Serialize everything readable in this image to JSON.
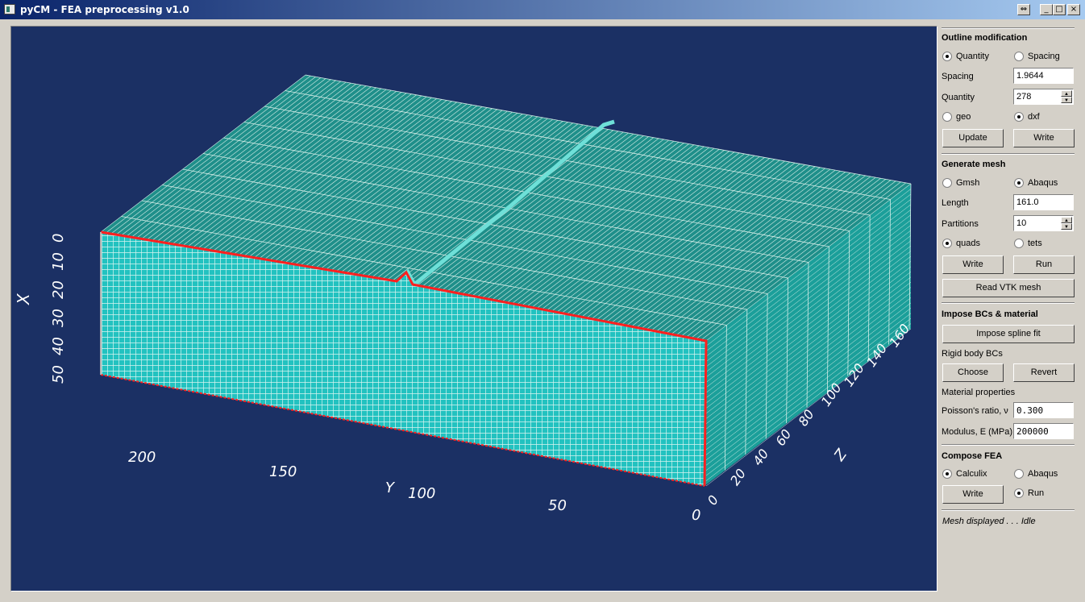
{
  "window": {
    "title": "pyCM - FEA preprocessing v1.0"
  },
  "titlebar": {
    "restore_glyph": "⇔",
    "minimize_glyph": "_",
    "maximize_glyph": "□",
    "close_glyph": "×"
  },
  "viewport": {
    "x_axis": {
      "label": "X",
      "ticks": [
        "0",
        "10",
        "20",
        "30",
        "40",
        "50"
      ]
    },
    "y_axis": {
      "label": "Y",
      "ticks": [
        "200",
        "150",
        "100",
        "50",
        "0"
      ]
    },
    "z_axis": {
      "label": "Z",
      "ticks": [
        "0",
        "20",
        "40",
        "60",
        "80",
        "100",
        "120",
        "140",
        "160"
      ]
    },
    "colors": {
      "background": "#1b3064",
      "mesh_face": "#1fbfbf",
      "mesh_top": "#1a8f8a",
      "outline": "#ff2020",
      "grid_line": "#e0f2ee"
    }
  },
  "outline": {
    "header": "Outline modification",
    "quantity_label": "Quantity",
    "spacing_radio_label": "Spacing",
    "spacing_field_label": "Spacing",
    "spacing_value": "1.9644",
    "quantity_field_label": "Quantity",
    "quantity_value": "278",
    "geo_label": "geo",
    "dxf_label": "dxf",
    "update_button": "Update",
    "write_button": "Write",
    "selected_mode": "Quantity",
    "selected_format": "dxf"
  },
  "mesh": {
    "header": "Generate mesh",
    "gmsh_label": "Gmsh",
    "abaqus_label": "Abaqus",
    "length_label": "Length",
    "length_value": "161.0",
    "partitions_label": "Partitions",
    "partitions_value": "10",
    "quads_label": "quads",
    "tets_label": "tets",
    "write_button": "Write",
    "run_button": "Run",
    "read_vtk_button": "Read VTK mesh",
    "selected_mesher": "Abaqus",
    "selected_element": "quads"
  },
  "bcs": {
    "header": "Impose BCs & material",
    "spline_button": "Impose spline fit",
    "rigid_label": "Rigid body BCs",
    "choose_button": "Choose",
    "revert_button": "Revert",
    "material_label": "Material properties",
    "poisson_label": "Poisson's ratio, ν",
    "poisson_value": "0.300",
    "modulus_label": "Modulus, E (MPa)",
    "modulus_value": "200000"
  },
  "fea": {
    "header": "Compose FEA",
    "calculix_label": "Calculix",
    "abaqus_label": "Abaqus",
    "write_button": "Write",
    "run_label": "Run",
    "selected_solver": "Calculix",
    "run_checked": true
  },
  "status": {
    "text": "Mesh displayed . . . Idle"
  }
}
